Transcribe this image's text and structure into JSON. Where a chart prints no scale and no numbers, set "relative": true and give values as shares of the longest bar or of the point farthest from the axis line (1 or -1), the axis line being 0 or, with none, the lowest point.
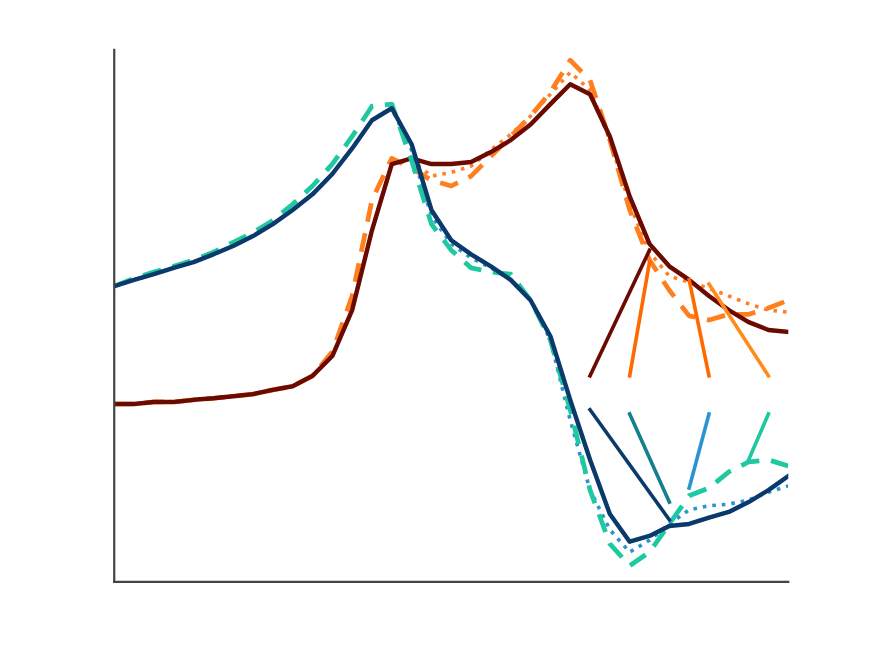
{
  "chart_data": {
    "type": "line",
    "relative": true,
    "marker": "none",
    "categories": [
      null,
      null,
      null,
      null,
      null,
      null,
      null,
      null,
      null,
      null,
      null,
      null,
      null,
      null,
      null,
      null,
      null,
      null,
      null,
      null,
      null,
      null,
      null,
      null,
      null,
      null,
      null,
      null,
      null,
      null,
      null,
      null,
      null,
      null,
      null
    ],
    "series": [
      {
        "color": "#ff7f2a",
        "line_style": "dotted",
        "values": [
          0.341,
          0.341,
          0.345,
          0.345,
          0.349,
          0.352,
          0.356,
          0.36,
          0.368,
          0.375,
          0.395,
          0.433,
          0.521,
          0.674,
          0.801,
          0.808,
          0.778,
          0.785,
          0.797,
          0.828,
          0.858,
          0.893,
          0.935,
          0.977,
          0.943,
          0.847,
          0.724,
          0.632,
          0.586,
          0.575,
          0.563,
          0.548,
          0.533,
          0.521,
          0.517
        ]
      },
      {
        "color": "#ff7f1f",
        "line_style": "dashed",
        "values": [
          0.341,
          0.341,
          0.345,
          0.345,
          0.349,
          0.352,
          0.356,
          0.36,
          0.368,
          0.375,
          0.395,
          0.441,
          0.548,
          0.732,
          0.812,
          0.793,
          0.77,
          0.759,
          0.778,
          0.816,
          0.854,
          0.893,
          0.939,
          1.0,
          0.962,
          0.847,
          0.713,
          0.617,
          0.559,
          0.51,
          0.502,
          0.513,
          0.513,
          0.525,
          0.54
        ]
      },
      {
        "color": "#6b0a00",
        "line_style": "solid",
        "values": [
          0.341,
          0.341,
          0.345,
          0.345,
          0.349,
          0.352,
          0.356,
          0.36,
          0.368,
          0.375,
          0.395,
          0.433,
          0.521,
          0.674,
          0.801,
          0.812,
          0.801,
          0.801,
          0.805,
          0.824,
          0.847,
          0.877,
          0.916,
          0.954,
          0.935,
          0.854,
          0.739,
          0.648,
          0.605,
          0.579,
          0.548,
          0.521,
          0.498,
          0.483,
          0.479
        ]
      },
      {
        "color": "#2a93d0",
        "line_style": "dotted",
        "values": [
          0.567,
          0.579,
          0.59,
          0.602,
          0.613,
          0.628,
          0.644,
          0.663,
          0.686,
          0.713,
          0.743,
          0.782,
          0.831,
          0.885,
          0.908,
          0.828,
          0.701,
          0.648,
          0.621,
          0.602,
          0.579,
          0.54,
          0.464,
          0.31,
          0.176,
          0.1,
          0.057,
          0.08,
          0.111,
          0.138,
          0.146,
          0.149,
          0.157,
          0.172,
          0.184
        ]
      },
      {
        "color": "#1ec8a0",
        "line_style": "dashed",
        "values": [
          0.567,
          0.582,
          0.594,
          0.605,
          0.617,
          0.632,
          0.651,
          0.67,
          0.693,
          0.724,
          0.759,
          0.801,
          0.854,
          0.912,
          0.916,
          0.808,
          0.686,
          0.636,
          0.602,
          0.594,
          0.59,
          0.54,
          0.464,
          0.33,
          0.176,
          0.073,
          0.031,
          0.057,
          0.111,
          0.165,
          0.18,
          0.211,
          0.23,
          0.234,
          0.222
        ]
      },
      {
        "color": "#0a3a6b",
        "line_style": "solid",
        "values": [
          0.567,
          0.579,
          0.59,
          0.602,
          0.613,
          0.628,
          0.644,
          0.663,
          0.686,
          0.713,
          0.743,
          0.782,
          0.831,
          0.885,
          0.908,
          0.839,
          0.713,
          0.655,
          0.628,
          0.605,
          0.579,
          0.54,
          0.471,
          0.349,
          0.234,
          0.13,
          0.077,
          0.088,
          0.107,
          0.111,
          0.123,
          0.134,
          0.153,
          0.176,
          0.203
        ]
      },
      {
        "color": "#6b0a00",
        "line_style": "solid",
        "values": [
          null,
          null,
          null,
          null,
          null,
          null,
          null,
          null,
          null,
          null,
          null,
          null,
          null,
          null,
          null,
          null,
          null,
          null,
          null,
          null,
          null,
          null,
          null,
          null,
          0.395,
          null,
          null,
          0.636,
          null,
          null,
          null,
          null,
          null,
          null,
          null
        ]
      },
      {
        "color": "#ff6a00",
        "line_style": "solid",
        "values": [
          null,
          null,
          null,
          null,
          null,
          null,
          null,
          null,
          null,
          null,
          null,
          null,
          null,
          null,
          null,
          null,
          null,
          null,
          null,
          null,
          null,
          null,
          null,
          null,
          null,
          null,
          0.395,
          0.613,
          null,
          null,
          null,
          null,
          null,
          null,
          null
        ]
      },
      {
        "color": "#ff6a00",
        "line_style": "solid",
        "values": [
          null,
          null,
          null,
          null,
          null,
          null,
          null,
          null,
          null,
          null,
          null,
          null,
          null,
          null,
          null,
          null,
          null,
          null,
          null,
          null,
          null,
          null,
          null,
          null,
          null,
          null,
          null,
          null,
          null,
          0.579,
          0.395,
          null,
          null,
          null,
          null
        ]
      },
      {
        "color": "#ff8c1a",
        "line_style": "solid",
        "values": [
          null,
          null,
          null,
          null,
          null,
          null,
          null,
          null,
          null,
          null,
          null,
          null,
          null,
          null,
          null,
          null,
          null,
          null,
          null,
          null,
          null,
          null,
          null,
          null,
          null,
          null,
          null,
          null,
          null,
          null,
          0.571,
          null,
          null,
          0.395,
          null
        ]
      },
      {
        "color": "#0a3a6b",
        "line_style": "solid",
        "values": [
          null,
          null,
          null,
          null,
          null,
          null,
          null,
          null,
          null,
          null,
          null,
          null,
          null,
          null,
          null,
          null,
          null,
          null,
          null,
          null,
          null,
          null,
          null,
          null,
          0.33,
          null,
          null,
          null,
          0.119,
          null,
          null,
          null,
          null,
          null,
          null
        ]
      },
      {
        "color": "#137f8f",
        "line_style": "solid",
        "values": [
          null,
          null,
          null,
          null,
          null,
          null,
          null,
          null,
          null,
          null,
          null,
          null,
          null,
          null,
          null,
          null,
          null,
          null,
          null,
          null,
          null,
          null,
          null,
          null,
          null,
          null,
          0.322,
          null,
          0.153,
          null,
          null,
          null,
          null,
          null,
          null
        ]
      },
      {
        "color": "#2a93d0",
        "line_style": "solid",
        "values": [
          null,
          null,
          null,
          null,
          null,
          null,
          null,
          null,
          null,
          null,
          null,
          null,
          null,
          null,
          null,
          null,
          null,
          null,
          null,
          null,
          null,
          null,
          null,
          null,
          null,
          null,
          null,
          null,
          null,
          0.18,
          0.322,
          null,
          null,
          null,
          null
        ]
      },
      {
        "color": "#1ec8a0",
        "line_style": "solid",
        "values": [
          null,
          null,
          null,
          null,
          null,
          null,
          null,
          null,
          null,
          null,
          null,
          null,
          null,
          null,
          null,
          null,
          null,
          null,
          null,
          null,
          null,
          null,
          null,
          null,
          null,
          null,
          null,
          null,
          null,
          null,
          null,
          null,
          0.234,
          0.322,
          null
        ]
      }
    ]
  }
}
